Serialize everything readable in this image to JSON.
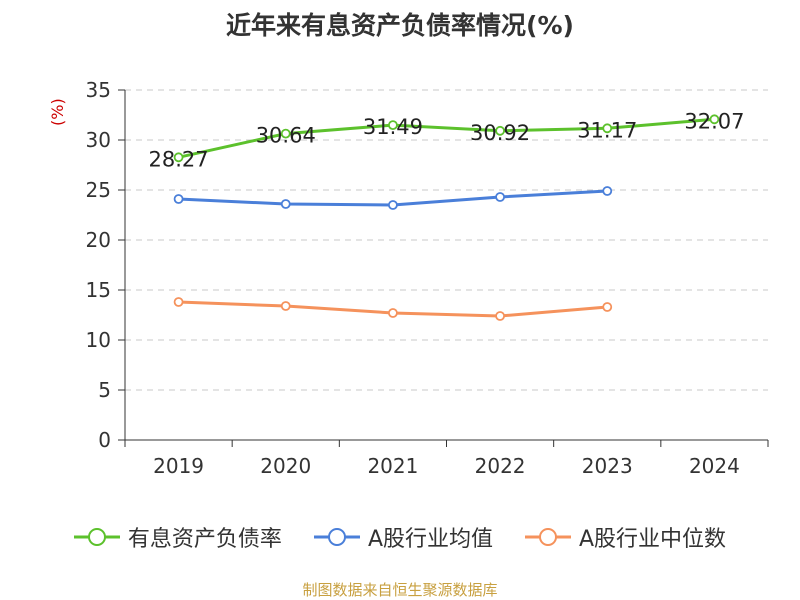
{
  "chart_data": {
    "type": "line",
    "title": "近年来有息资产负债率情况(%)",
    "ylabel": "(%)",
    "xlabel": "",
    "categories": [
      "2019",
      "2020",
      "2021",
      "2022",
      "2023",
      "2024"
    ],
    "ylim": [
      0,
      35
    ],
    "yticks": [
      0,
      5,
      10,
      15,
      20,
      25,
      30,
      35
    ],
    "grid": true,
    "legend_position": "bottom",
    "series": [
      {
        "name": "有息资产负债率",
        "color": "#5cc12c",
        "values": [
          28.27,
          30.64,
          31.49,
          30.92,
          31.17,
          32.07
        ],
        "labels": [
          "28.27",
          "30.64",
          "31.49",
          "30.92",
          "31.17",
          "32.07"
        ],
        "show_labels": true
      },
      {
        "name": "A股行业均值",
        "color": "#4a7fd9",
        "values": [
          24.1,
          23.6,
          23.5,
          24.3,
          24.9,
          null
        ],
        "show_labels": false
      },
      {
        "name": "A股行业中位数",
        "color": "#f5925c",
        "values": [
          13.8,
          13.4,
          12.7,
          12.4,
          13.3,
          null
        ],
        "show_labels": false
      }
    ]
  },
  "source": "制图数据来自恒生聚源数据库"
}
